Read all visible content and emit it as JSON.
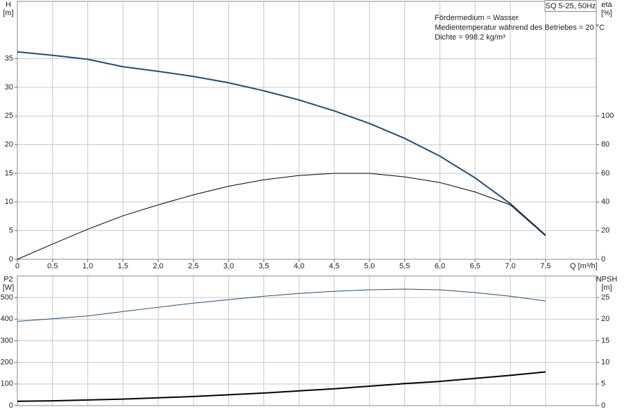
{
  "chart_data": [
    {
      "type": "line",
      "title": "SQ 5-25, 50Hz",
      "annotations": [
        "Fördermedium = Wasser",
        "Medientemperatur während des Betriebes = 20 °C",
        "Dichte = 998.2 kg/m³"
      ],
      "y_label": "H",
      "y_unit": "[m]",
      "y2_label": "eta",
      "y2_unit": "[%]",
      "x_label": "Q [m³/h]",
      "x": [
        0,
        0.5,
        1.0,
        1.5,
        2.0,
        2.5,
        3.0,
        3.5,
        4.0,
        4.5,
        5.0,
        5.5,
        6.0,
        6.5,
        7.0,
        7.5
      ],
      "xlim": [
        0,
        8.22
      ],
      "xticks": [
        0,
        {
          "value": 0.5,
          "label": "0,5"
        },
        {
          "value": 1.0,
          "label": "1,0"
        },
        {
          "value": 1.5,
          "label": "1,5"
        },
        {
          "value": 2.0,
          "label": "2,0"
        },
        {
          "value": 2.5,
          "label": "2,5"
        },
        {
          "value": 3.0,
          "label": "3,0"
        },
        {
          "value": 3.5,
          "label": "3,5"
        },
        {
          "value": 4.0,
          "label": "4,0"
        },
        {
          "value": 4.5,
          "label": "4,5"
        },
        {
          "value": 5.0,
          "label": "5,0"
        },
        {
          "value": 5.5,
          "label": "5,5"
        },
        {
          "value": 6.0,
          "label": "6,0"
        },
        {
          "value": 6.5,
          "label": "6,5"
        },
        {
          "value": 7.0,
          "label": "7,0"
        },
        {
          "value": 7.5,
          "label": "7,5"
        }
      ],
      "ylim": [
        0,
        45
      ],
      "yticks": [
        0,
        5,
        10,
        15,
        20,
        25,
        30,
        35
      ],
      "y2lim": [
        0,
        180
      ],
      "y2ticks": [
        0,
        20,
        40,
        60,
        80,
        100
      ],
      "grid": true,
      "series": [
        {
          "color": "#1f4e79",
          "width": 2,
          "values": [
            36.2,
            35.6,
            34.9,
            33.6,
            32.8,
            31.9,
            30.8,
            29.4,
            27.8,
            25.9,
            23.7,
            21.1,
            18.0,
            14.2,
            9.7,
            4.2
          ]
        },
        {
          "color": "#000000",
          "width": 1,
          "axis": "y2",
          "values": [
            0,
            10.6,
            21,
            30.4,
            38,
            45,
            51,
            55.5,
            58.5,
            60,
            60,
            57.5,
            53.6,
            47,
            38,
            16.4
          ]
        }
      ]
    },
    {
      "type": "line",
      "y_label": "P2",
      "y_unit": "[W]",
      "y2_label": "NPSH",
      "y2_unit": "[m]",
      "x": [
        0,
        0.5,
        1.0,
        1.5,
        2.0,
        2.5,
        3.0,
        3.5,
        4.0,
        4.5,
        5.0,
        5.5,
        6.0,
        6.5,
        7.0,
        7.5
      ],
      "xlim": [
        0,
        8.22
      ],
      "ylim": [
        0,
        600
      ],
      "yticks": [
        0,
        100,
        200,
        300,
        400,
        500
      ],
      "y2lim": [
        0,
        30
      ],
      "y2ticks": [
        0,
        5,
        10,
        15,
        20,
        25
      ],
      "grid": true,
      "series": [
        {
          "color": "#1f4e79",
          "width": 1,
          "values": [
            390,
            402,
            415,
            435,
            455,
            474,
            490,
            506,
            519,
            529,
            536,
            539,
            536,
            523,
            506,
            484
          ]
        },
        {
          "color": "#000000",
          "width": 2,
          "axis": "y2",
          "values": [
            1.0,
            1.1,
            1.3,
            1.5,
            1.8,
            2.1,
            2.5,
            2.9,
            3.4,
            3.9,
            4.5,
            5.1,
            5.6,
            6.3,
            7.0,
            7.8
          ]
        }
      ]
    }
  ]
}
